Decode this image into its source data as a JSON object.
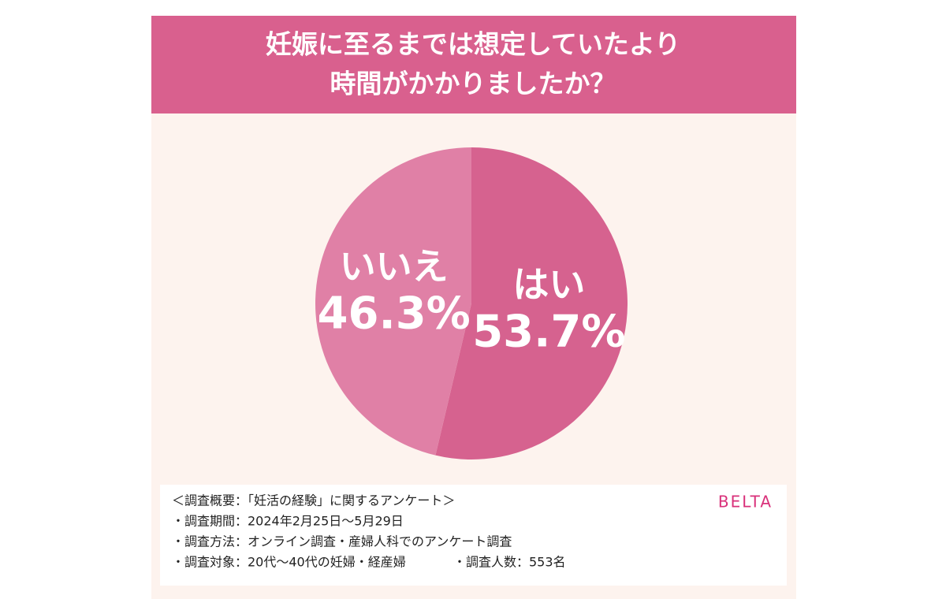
{
  "chart_data": {
    "type": "pie",
    "title": [
      "妊娠に至るまでは想定していたより",
      "時間がかかりましたか？"
    ],
    "categories": [
      "はい",
      "いいえ"
    ],
    "values": [
      53.7,
      46.3
    ],
    "value_labels": [
      "53.7%",
      "46.3%"
    ],
    "colors": [
      "#d6628f",
      "#e080a6"
    ],
    "notes": [
      "＜調査概要：「妊活の経験」に関するアンケート＞",
      "・調査期間：2024年2月25日〜5月29日",
      "・調査方法：オンライン調査・産婦人科でのアンケート調査",
      "・調査対象：20代〜40代の妊婦・経産婦",
      "・調査人数：553名"
    ],
    "logo": "BELTA"
  }
}
